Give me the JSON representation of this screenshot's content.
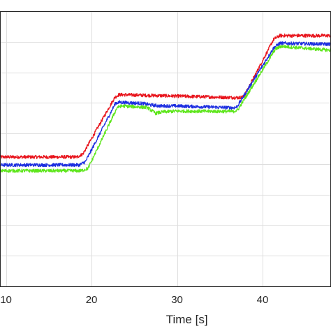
{
  "chart_data": {
    "type": "line",
    "xlabel": "Time [s]",
    "ylabel": "",
    "xlim": [
      9.3,
      48
    ],
    "ylim": [
      0,
      9
    ],
    "x_ticks": [
      10,
      20,
      30,
      40
    ],
    "y_gridlines": [
      1,
      2,
      3,
      4,
      5,
      6,
      7,
      8
    ],
    "grid": true,
    "legend": "none",
    "colors": {
      "red": "#e8141c",
      "blue": "#1c2ee0",
      "green": "#5ee61c"
    },
    "series": [
      {
        "color": "#e8141c",
        "x": [
          9.3,
          18.3,
          19.0,
          22.7,
          23.2,
          37.2,
          37.8,
          41.3,
          42.0,
          48
        ],
        "y": [
          4.23,
          4.23,
          4.33,
          6.17,
          6.27,
          6.17,
          6.2,
          8.08,
          8.2,
          8.2
        ]
      },
      {
        "color": "#1c2ee0",
        "x": [
          9.3,
          18.6,
          19.3,
          22.8,
          23.3,
          26.0,
          27.0,
          28.0,
          30.0,
          36.6,
          37.0,
          41.3,
          42.0,
          48
        ],
        "y": [
          3.97,
          3.97,
          4.08,
          5.99,
          6.02,
          5.98,
          5.93,
          5.9,
          5.9,
          5.84,
          5.87,
          7.8,
          7.95,
          7.92
        ]
      },
      {
        "color": "#5ee61c",
        "x": [
          9.3,
          18.8,
          19.6,
          23.0,
          23.5,
          26.5,
          27.5,
          28.5,
          30.0,
          36.6,
          37.1,
          41.5,
          42.2,
          48
        ],
        "y": [
          3.78,
          3.78,
          3.86,
          5.85,
          5.9,
          5.85,
          5.66,
          5.71,
          5.73,
          5.72,
          5.77,
          7.76,
          7.85,
          7.72
        ]
      }
    ]
  }
}
